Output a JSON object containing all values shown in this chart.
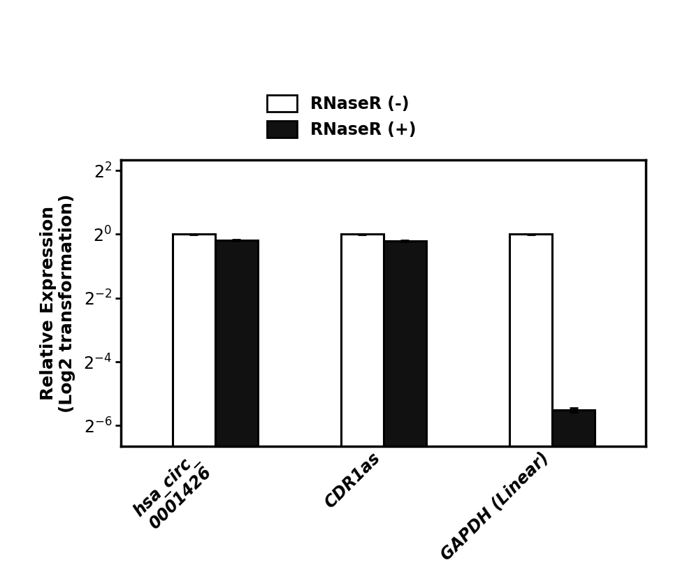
{
  "categories": [
    "hsa_circ_\n0001426",
    "CDR1as",
    "GAPDH (Linear)"
  ],
  "rnaser_minus": [
    1.0,
    1.0,
    1.0
  ],
  "rnaser_plus": [
    0.88,
    0.86,
    0.022
  ],
  "rnaser_minus_err": [
    0.008,
    0.012,
    0.01
  ],
  "rnaser_plus_err": [
    0.012,
    0.015,
    0.001
  ],
  "bar_width": 0.38,
  "group_positions": [
    1.0,
    2.5,
    4.0
  ],
  "color_minus": "#ffffff",
  "color_plus": "#111111",
  "edgecolor": "#000000",
  "ylabel_line1": "Relative Expression",
  "ylabel_line2": "(Log2 transformation)",
  "yticks_values": [
    4,
    1,
    0.25,
    0.0625,
    0.015625
  ],
  "yticks_labels": [
    "$2^{2}$",
    "$2^{0}$",
    "$2^{-2}$",
    "$2^{-4}$",
    "$2^{-6}$"
  ],
  "ylim_min": 0.01,
  "ylim_max": 5.0,
  "legend_labels": [
    "RNaseR (-)",
    "RNaseR (+)"
  ],
  "tick_fontsize": 17,
  "label_fontsize": 18,
  "legend_fontsize": 17,
  "linewidth": 2.2,
  "capsize": 4
}
